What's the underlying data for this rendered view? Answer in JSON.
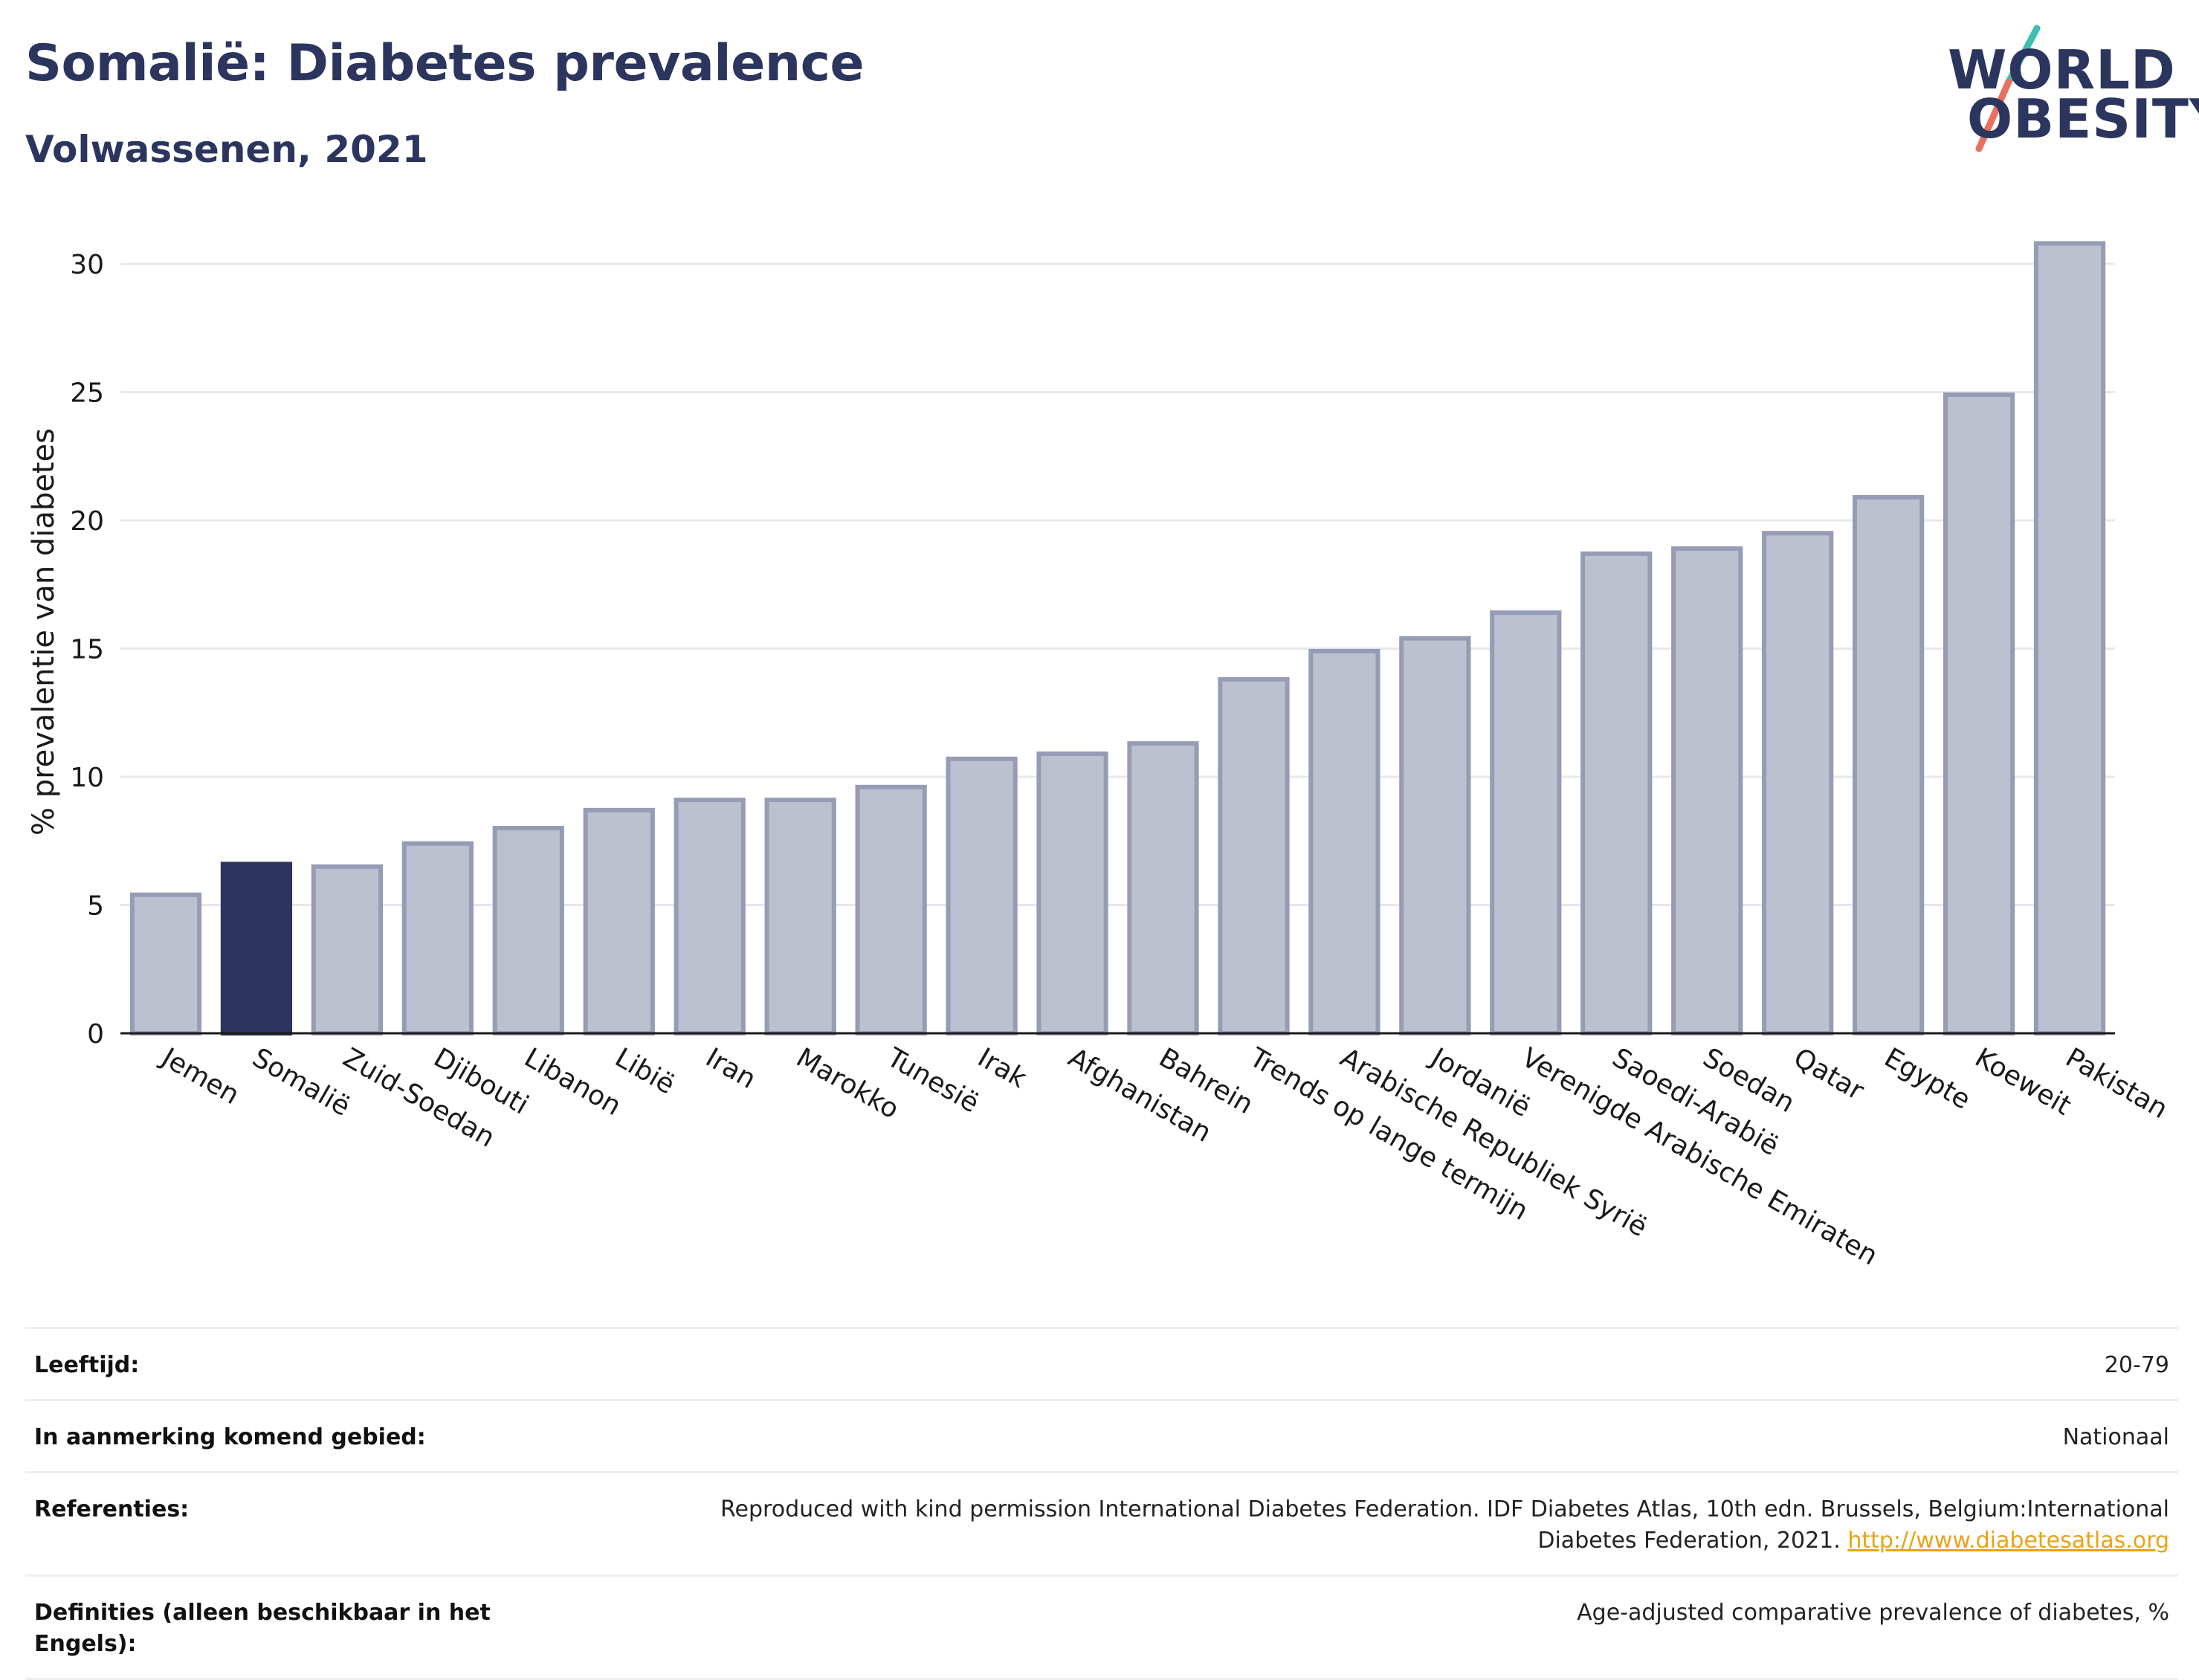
{
  "header": {
    "title": "Somalië: Diabetes prevalence",
    "subtitle": "Volwassenen, 2021"
  },
  "logo": {
    "line1": "WORLD",
    "line2": "OBESITY",
    "colors": {
      "text": "#2b355e",
      "slash_top": "#3fbfb2",
      "slash_bottom": "#e8725f"
    }
  },
  "colors": {
    "highlight": "#2b355e",
    "bar_fill": "#bcc0cf",
    "bar_stroke": "#969cb5",
    "grid": "#e6e8ee",
    "link": "#e8a317"
  },
  "chart_data": {
    "type": "bar",
    "ylabel": "% prevalentie van diabetes",
    "ylim": [
      0,
      32
    ],
    "yticks": [
      0,
      5,
      10,
      15,
      20,
      25,
      30
    ],
    "grid": true,
    "highlight": "Somalië",
    "categories": [
      "Jemen",
      "Somalië",
      "Zuid-Soedan",
      "Djibouti",
      "Libanon",
      "Libië",
      "Iran",
      "Marokko",
      "Tunesië",
      "Irak",
      "Afghanistan",
      "Bahrein",
      "Trends op lange termijn",
      "Arabische Republiek Syrië",
      "Jordanië",
      "Verenigde Arabische Emiraten",
      "Saoedi-Arabië",
      "Soedan",
      "Qatar",
      "Egypte",
      "Koeweit",
      "Pakistan"
    ],
    "values": [
      5.4,
      6.6,
      6.5,
      7.4,
      8.0,
      8.7,
      9.1,
      9.1,
      9.6,
      10.7,
      10.9,
      11.3,
      13.8,
      14.9,
      15.4,
      16.4,
      18.7,
      18.9,
      19.5,
      20.9,
      24.9,
      30.8
    ]
  },
  "meta": [
    {
      "key": "Leeftijd:",
      "value": "20-79"
    },
    {
      "key": "In aanmerking komend gebied:",
      "value": "Nationaal"
    },
    {
      "key": "Referenties:",
      "value": "Reproduced with kind permission International Diabetes Federation.  IDF Diabetes Atlas, 10th edn. Brussels, Belgium:International Diabetes Federation, 2021.",
      "link": "http://www.diabetesatlas.org"
    },
    {
      "key": "Definities (alleen beschikbaar in het Engels):",
      "value": "Age-adjusted comparative prevalence of diabetes, %"
    }
  ]
}
